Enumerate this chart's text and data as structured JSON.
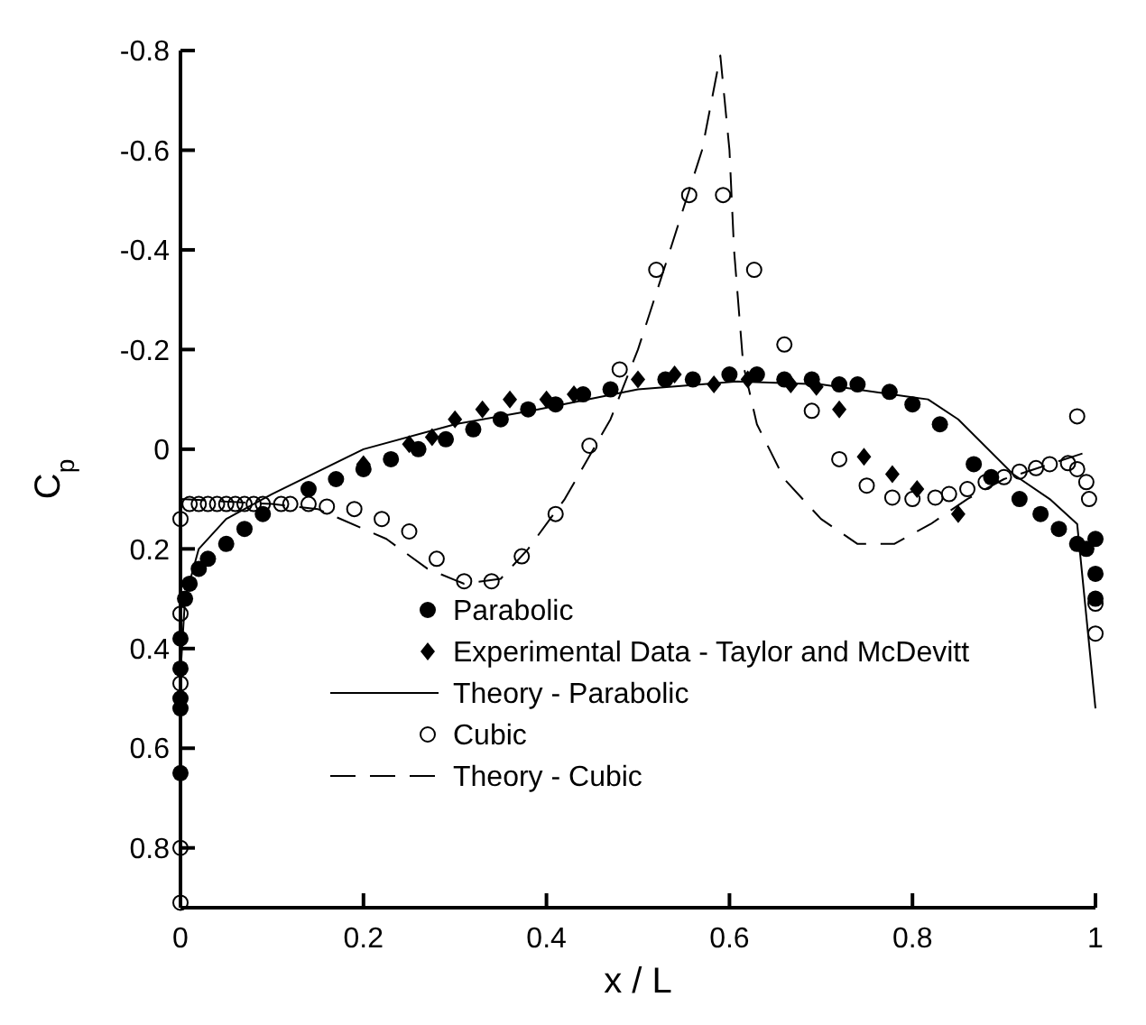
{
  "chart_data": {
    "type": "scatter",
    "xlabel": "x / L",
    "ylabel": "C$_{p}$",
    "xlim": [
      0,
      1
    ],
    "xticks": [
      0,
      0.2,
      0.4,
      0.6,
      0.8,
      1
    ],
    "ylim": [
      0.92,
      -0.8
    ],
    "yticks": [
      -0.8,
      -0.6,
      -0.4,
      -0.2,
      0,
      0.2,
      0.4,
      0.6,
      0.8
    ],
    "grid": false,
    "legend": "bottom",
    "series": [
      {
        "name": "Parabolic",
        "type": "scatter",
        "marker": "circle",
        "color": "#000000",
        "x": [
          0,
          0,
          0,
          0,
          0,
          0.005,
          0.01,
          0.02,
          0.03,
          0.05,
          0.07,
          0.09,
          0.14,
          0.17,
          0.2,
          0.23,
          0.26,
          0.29,
          0.32,
          0.35,
          0.38,
          0.41,
          0.44,
          0.47,
          0.53,
          0.56,
          0.6,
          0.63,
          0.66,
          0.69,
          0.72,
          0.74,
          0.775,
          0.8,
          0.83,
          0.867,
          0.886,
          0.917,
          0.94,
          0.96,
          0.98,
          0.99,
          1,
          1,
          1
        ],
        "values": [
          0.65,
          0.52,
          0.5,
          0.44,
          0.38,
          0.3,
          0.27,
          0.24,
          0.22,
          0.19,
          0.16,
          0.13,
          0.08,
          0.06,
          0.04,
          0.02,
          0.0,
          -0.02,
          -0.04,
          -0.06,
          -0.08,
          -0.09,
          -0.11,
          -0.12,
          -0.14,
          -0.14,
          -0.15,
          -0.15,
          -0.14,
          -0.14,
          -0.13,
          -0.13,
          -0.115,
          -0.09,
          -0.05,
          0.03,
          0.056,
          0.1,
          0.13,
          0.16,
          0.19,
          0.2,
          0.18,
          0.25,
          0.3
        ]
      },
      {
        "name": "Experimental Data - Taylor and McDevitt",
        "type": "scatter",
        "marker": "diamond",
        "color": "#000000",
        "x": [
          0.2,
          0.25,
          0.275,
          0.3,
          0.33,
          0.36,
          0.4,
          0.43,
          0.5,
          0.54,
          0.583,
          0.62,
          0.667,
          0.695,
          0.72,
          0.747,
          0.778,
          0.805,
          0.85
        ],
        "values": [
          0.03,
          -0.01,
          -0.024,
          -0.06,
          -0.08,
          -0.1,
          -0.1,
          -0.11,
          -0.14,
          -0.15,
          -0.13,
          -0.14,
          -0.13,
          -0.125,
          -0.08,
          0.015,
          0.05,
          0.08,
          0.13
        ]
      },
      {
        "name": "Theory - Parabolic",
        "type": "line",
        "marker": "none",
        "line_style": "solid",
        "color": "#000000",
        "x": [
          0,
          0.005,
          0.02,
          0.05,
          0.1,
          0.2,
          0.3,
          0.386,
          0.5,
          0.608,
          0.7,
          0.817,
          0.85,
          0.91,
          0.95,
          0.98,
          1
        ],
        "values": [
          0.45,
          0.3,
          0.2,
          0.14,
          0.09,
          0.0,
          -0.05,
          -0.078,
          -0.12,
          -0.136,
          -0.13,
          -0.1,
          -0.06,
          0.05,
          0.1,
          0.15,
          0.52
        ]
      },
      {
        "name": "Cubic",
        "type": "scatter",
        "marker": "circle-open",
        "color": "#000000",
        "x": [
          0,
          0,
          0,
          0,
          0,
          0.01,
          0.02,
          0.03,
          0.04,
          0.05,
          0.06,
          0.07,
          0.08,
          0.09,
          0.11,
          0.12,
          0.14,
          0.16,
          0.19,
          0.22,
          0.25,
          0.28,
          0.31,
          0.34,
          0.373,
          0.41,
          0.447,
          0.48,
          0.52,
          0.556,
          0.593,
          0.627,
          0.66,
          0.69,
          0.72,
          0.75,
          0.778,
          0.8,
          0.825,
          0.84,
          0.86,
          0.88,
          0.9,
          0.917,
          0.935,
          0.95,
          0.97,
          0.98,
          0.98,
          0.99,
          0.993,
          1,
          1
        ],
        "values": [
          0.91,
          0.8,
          0.47,
          0.33,
          0.14,
          0.11,
          0.11,
          0.11,
          0.11,
          0.11,
          0.11,
          0.11,
          0.11,
          0.11,
          0.11,
          0.11,
          0.11,
          0.115,
          0.12,
          0.14,
          0.165,
          0.22,
          0.265,
          0.265,
          0.215,
          0.13,
          -0.007,
          -0.16,
          -0.36,
          -0.51,
          -0.51,
          -0.36,
          -0.21,
          -0.077,
          0.02,
          0.073,
          0.097,
          0.1,
          0.097,
          0.09,
          0.08,
          0.066,
          0.056,
          0.045,
          0.038,
          0.03,
          0.028,
          -0.066,
          0.04,
          0.066,
          0.1,
          0.31,
          0.37
        ]
      },
      {
        "name": "Theory - Cubic",
        "type": "line",
        "marker": "none",
        "line_style": "dashed",
        "color": "#000000",
        "x": [
          0,
          0.1,
          0.15,
          0.225,
          0.27,
          0.31,
          0.35,
          0.38,
          0.42,
          0.47,
          0.5,
          0.53,
          0.57,
          0.59,
          0.6,
          0.605,
          0.615,
          0.63,
          0.66,
          0.7,
          0.74,
          0.78,
          0.82,
          0.86,
          0.9,
          0.95,
          1
        ],
        "values": [
          0.1,
          0.11,
          0.12,
          0.18,
          0.24,
          0.27,
          0.26,
          0.2,
          0.1,
          -0.06,
          -0.2,
          -0.37,
          -0.6,
          -0.79,
          -0.6,
          -0.4,
          -0.17,
          -0.05,
          0.06,
          0.14,
          0.19,
          0.19,
          0.15,
          0.1,
          0.06,
          0.03,
          0.0
        ]
      }
    ]
  }
}
